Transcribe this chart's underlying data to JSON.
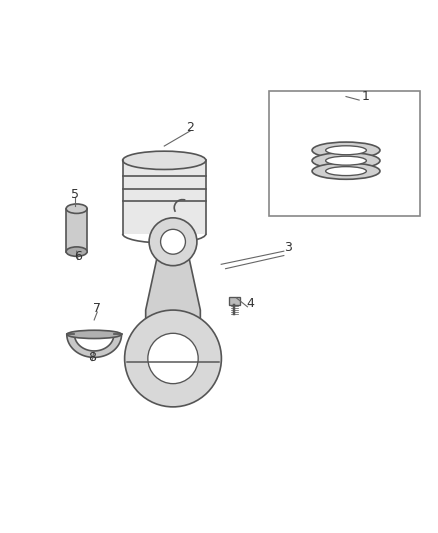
{
  "bg_color": "#ffffff",
  "line_color": "#555555",
  "label_color": "#333333",
  "fig_width": 4.38,
  "fig_height": 5.33,
  "dpi": 100
}
